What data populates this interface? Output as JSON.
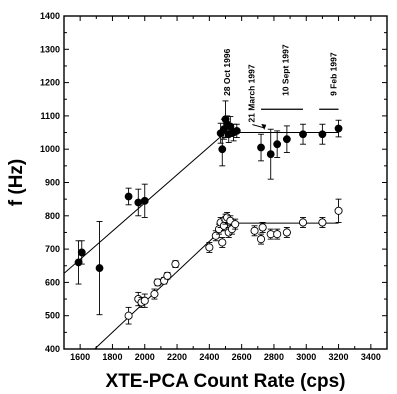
{
  "chart_data": {
    "type": "scatter",
    "xlabel": "XTE-PCA Count Rate (cps)",
    "ylabel": "f (Hz)",
    "xlim": [
      1500,
      3500
    ],
    "ylim": [
      400,
      1400
    ],
    "x_ticks": [
      1600,
      1800,
      2000,
      2200,
      2400,
      2600,
      2800,
      3000,
      3200,
      3400
    ],
    "y_ticks": [
      400,
      500,
      600,
      700,
      800,
      900,
      1000,
      1100,
      1200,
      1300,
      1400
    ],
    "grid": false,
    "legend": "none",
    "series": [
      {
        "marker": "filled-circle",
        "points": [
          {
            "x": 1590,
            "y": 660,
            "err": 65
          },
          {
            "x": 1610,
            "y": 690,
            "err": 35
          },
          {
            "x": 1720,
            "y": 643,
            "err": 140
          },
          {
            "x": 1900,
            "y": 858,
            "err": 25
          },
          {
            "x": 1960,
            "y": 840,
            "err": 40
          },
          {
            "x": 2000,
            "y": 845,
            "err": 50
          },
          {
            "x": 2470,
            "y": 1048,
            "err": 30
          },
          {
            "x": 2480,
            "y": 1000,
            "err": 50
          },
          {
            "x": 2490,
            "y": 1060,
            "err": 30
          },
          {
            "x": 2500,
            "y": 1090,
            "err": 55
          },
          {
            "x": 2510,
            "y": 1075,
            "err": 25
          },
          {
            "x": 2520,
            "y": 1045,
            "err": 25
          },
          {
            "x": 2530,
            "y": 1068,
            "err": 30
          },
          {
            "x": 2550,
            "y": 1050,
            "err": 25
          },
          {
            "x": 2570,
            "y": 1055,
            "err": 20
          },
          {
            "x": 2720,
            "y": 1005,
            "err": 40
          },
          {
            "x": 2780,
            "y": 985,
            "err": 75
          },
          {
            "x": 2820,
            "y": 1015,
            "err": 40
          },
          {
            "x": 2880,
            "y": 1030,
            "err": 40
          },
          {
            "x": 2980,
            "y": 1045,
            "err": 30
          },
          {
            "x": 3100,
            "y": 1045,
            "err": 30
          },
          {
            "x": 3200,
            "y": 1062,
            "err": 25
          }
        ],
        "fit_lines": [
          {
            "x": [
              1500,
              2500
            ],
            "y": [
              627,
              1050
            ]
          },
          {
            "x": [
              2500,
              3200
            ],
            "y": [
              1050,
              1050
            ]
          }
        ]
      },
      {
        "marker": "open-circle",
        "points": [
          {
            "x": 1900,
            "y": 500,
            "err": 25
          },
          {
            "x": 1960,
            "y": 550,
            "err": 20
          },
          {
            "x": 1980,
            "y": 540,
            "err": 15
          },
          {
            "x": 2000,
            "y": 545,
            "err": 20
          },
          {
            "x": 2060,
            "y": 565,
            "err": 15
          },
          {
            "x": 2080,
            "y": 600,
            "err": 10
          },
          {
            "x": 2120,
            "y": 605,
            "err": 10
          },
          {
            "x": 2140,
            "y": 620,
            "err": 10
          },
          {
            "x": 2190,
            "y": 655,
            "err": 10
          },
          {
            "x": 2400,
            "y": 705,
            "err": 15
          },
          {
            "x": 2440,
            "y": 740,
            "err": 15
          },
          {
            "x": 2460,
            "y": 760,
            "err": 15
          },
          {
            "x": 2470,
            "y": 780,
            "err": 15
          },
          {
            "x": 2480,
            "y": 720,
            "err": 15
          },
          {
            "x": 2490,
            "y": 770,
            "err": 15
          },
          {
            "x": 2500,
            "y": 790,
            "err": 15
          },
          {
            "x": 2510,
            "y": 795,
            "err": 15
          },
          {
            "x": 2520,
            "y": 750,
            "err": 15
          },
          {
            "x": 2530,
            "y": 785,
            "err": 15
          },
          {
            "x": 2540,
            "y": 760,
            "err": 15
          },
          {
            "x": 2560,
            "y": 775,
            "err": 15
          },
          {
            "x": 2680,
            "y": 755,
            "err": 15
          },
          {
            "x": 2720,
            "y": 730,
            "err": 15
          },
          {
            "x": 2730,
            "y": 765,
            "err": 15
          },
          {
            "x": 2780,
            "y": 745,
            "err": 15
          },
          {
            "x": 2820,
            "y": 745,
            "err": 15
          },
          {
            "x": 2880,
            "y": 750,
            "err": 15
          },
          {
            "x": 2980,
            "y": 780,
            "err": 15
          },
          {
            "x": 3100,
            "y": 780,
            "err": 15
          },
          {
            "x": 3200,
            "y": 815,
            "err": 35
          }
        ],
        "fit_lines": [
          {
            "x": [
              1690,
              2520
            ],
            "y": [
              400,
              778
            ]
          },
          {
            "x": [
              2520,
              3200
            ],
            "y": [
              778,
              778
            ]
          }
        ]
      }
    ],
    "annotations": [
      {
        "text": "28 Oct 1996",
        "x": 2510,
        "y": 1160
      },
      {
        "text": "21 March 1997",
        "x": 2660,
        "y": 1080,
        "arrow_to": {
          "x": 2740,
          "y": 1055
        }
      },
      {
        "text": "10 Sept 1997",
        "x": 2870,
        "y": 1160,
        "bracket": {
          "x": [
            2720,
            2980
          ],
          "y": 1120
        }
      },
      {
        "text": "9 Feb 1997",
        "x": 3170,
        "y": 1160,
        "bracket": {
          "x": [
            3080,
            3200
          ],
          "y": 1120
        }
      }
    ]
  }
}
